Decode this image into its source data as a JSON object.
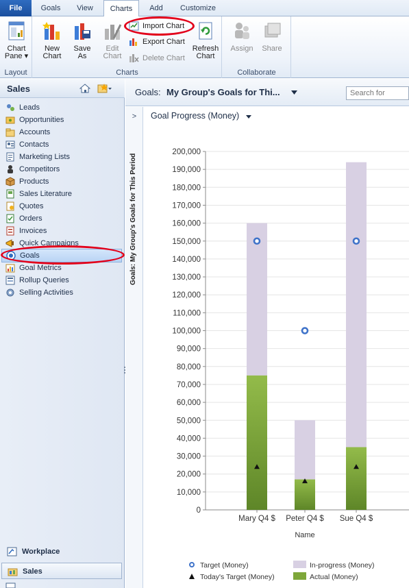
{
  "tabs": [
    {
      "label": "File"
    },
    {
      "label": "Goals"
    },
    {
      "label": "View"
    },
    {
      "label": "Charts"
    },
    {
      "label": "Add"
    },
    {
      "label": "Customize"
    }
  ],
  "ribbon": {
    "layout": {
      "label": "Layout",
      "chart_pane_line1": "Chart",
      "chart_pane_line2": "Pane ▾"
    },
    "charts": {
      "label": "Charts",
      "new_line1": "New",
      "new_line2": "Chart",
      "save_line1": "Save",
      "save_line2": "As",
      "edit_line1": "Edit",
      "edit_line2": "Chart",
      "import": "Import Chart",
      "export": "Export Chart",
      "delete": "Delete Chart",
      "refresh_line1": "Refresh",
      "refresh_line2": "Chart"
    },
    "collaborate": {
      "label": "Collaborate",
      "assign": "Assign",
      "share": "Share"
    }
  },
  "leftnav": {
    "title": "Sales",
    "items": [
      {
        "label": "Leads"
      },
      {
        "label": "Opportunities"
      },
      {
        "label": "Accounts"
      },
      {
        "label": "Contacts"
      },
      {
        "label": "Marketing Lists"
      },
      {
        "label": "Competitors"
      },
      {
        "label": "Products"
      },
      {
        "label": "Sales Literature"
      },
      {
        "label": "Quotes"
      },
      {
        "label": "Orders"
      },
      {
        "label": "Invoices"
      },
      {
        "label": "Quick Campaigns"
      },
      {
        "label": "Goals"
      },
      {
        "label": "Goal Metrics"
      },
      {
        "label": "Rollup Queries"
      },
      {
        "label": "Selling Activities"
      }
    ],
    "selected": "Goals",
    "wunderbar": [
      {
        "label": "Workplace"
      },
      {
        "label": "Sales"
      }
    ]
  },
  "view": {
    "prefix": "Goals:",
    "name": "My Group's Goals for Thi...",
    "search_placeholder": "Search for",
    "vertical_title": "Goals: My Group's Goals for This Period"
  },
  "chart_selector": "Goal Progress (Money)",
  "colors": {
    "inprogress": "#d8d0e3",
    "actual": "#7ea73a",
    "target": "#3f73c9",
    "highlight": "#e2001a"
  },
  "chart_data": {
    "type": "bar",
    "categories": [
      "Mary Q4 $",
      "Peter Q4 $",
      "Sue Q4 $"
    ],
    "xlabel": "Name",
    "ylim": [
      0,
      200000
    ],
    "yticks": [
      "0",
      "10,000",
      "20,000",
      "30,000",
      "40,000",
      "50,000",
      "60,000",
      "70,000",
      "80,000",
      "90,000",
      "100,000",
      "110,000",
      "120,000",
      "130,000",
      "140,000",
      "150,000",
      "160,000",
      "170,000",
      "180,000",
      "190,000",
      "200,000"
    ],
    "series": [
      {
        "name": "In-progress (Money)",
        "values": [
          160000,
          50000,
          194000
        ]
      },
      {
        "name": "Actual (Money)",
        "values": [
          75000,
          17000,
          35000
        ]
      },
      {
        "name": "Target (Money)",
        "values": [
          150000,
          100000,
          150000
        ]
      },
      {
        "name": "Today's Target (Money)",
        "values": [
          24000,
          16000,
          24000
        ]
      }
    ],
    "legend": "bottom"
  }
}
